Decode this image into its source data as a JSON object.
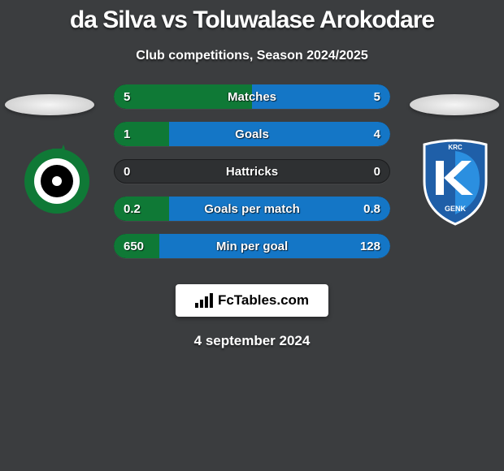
{
  "colors": {
    "background": "#3b3d3f",
    "row_bg": "#2e3032",
    "fill_left": "#0f7936",
    "fill_right": "#1476c6",
    "text": "#ffffff",
    "brand_bg": "#ffffff",
    "brand_text": "#000000"
  },
  "typography": {
    "title_fontsize": 30,
    "subtitle_fontsize": 16,
    "row_fontsize": 15,
    "brand_fontsize": 17,
    "date_fontsize": 17
  },
  "header": {
    "title": "da Silva vs Toluwalase Arokodare",
    "subtitle": "Club competitions, Season 2024/2025"
  },
  "clubs": {
    "left": {
      "name": "cercle-brugge",
      "ring_color": "#0f7936",
      "inner_color": "#000000"
    },
    "right": {
      "name": "krc-genk",
      "shield_color": "#1f5fa8",
      "accent_color": "#2b8fe0"
    }
  },
  "rows": [
    {
      "label": "Matches",
      "left": "5",
      "right": "5",
      "left_pct": 50,
      "right_pct": 50
    },
    {
      "label": "Goals",
      "left": "1",
      "right": "4",
      "left_pct": 20,
      "right_pct": 80
    },
    {
      "label": "Hattricks",
      "left": "0",
      "right": "0",
      "left_pct": 0,
      "right_pct": 0
    },
    {
      "label": "Goals per match",
      "left": "0.2",
      "right": "0.8",
      "left_pct": 20,
      "right_pct": 80
    },
    {
      "label": "Min per goal",
      "left": "650",
      "right": "128",
      "left_pct": 16.5,
      "right_pct": 83.5
    }
  ],
  "brand": {
    "text": "FcTables.com"
  },
  "date": "4 september 2024"
}
